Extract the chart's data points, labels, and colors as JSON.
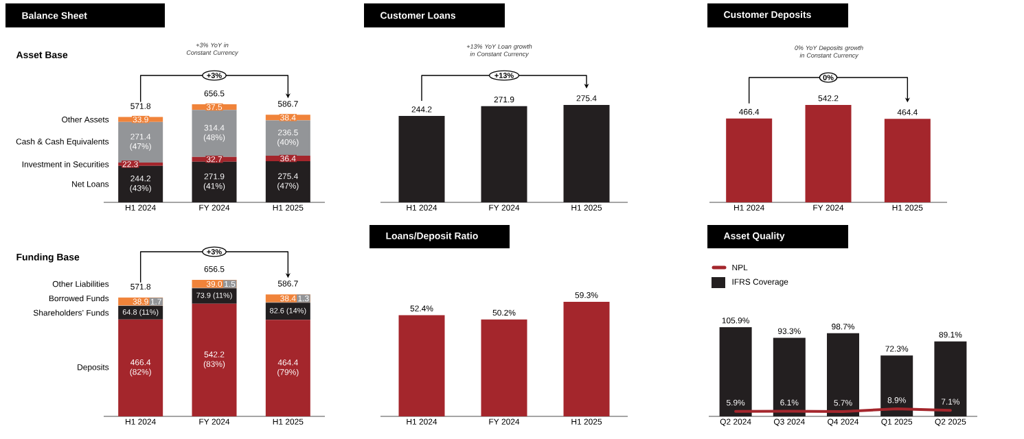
{
  "chart_data": [
    {
      "type": "bar",
      "stacked": true,
      "title": "Balance Sheet",
      "subtitle": "Asset Base",
      "categories": [
        "H1 2024",
        "FY 2024",
        "H1 2025"
      ],
      "series": [
        {
          "name": "Net Loans",
          "color": "#231f20",
          "values": [
            244.2,
            271.9,
            275.4
          ],
          "value_labels": [
            "244.2 (43%)",
            "271.9 (41%)",
            "275.4 (47%)"
          ]
        },
        {
          "name": "Investment in Securities",
          "color": "#a4262c",
          "values": [
            22.3,
            32.7,
            36.4
          ],
          "value_labels": [
            "22.3",
            "32.7",
            "36.4"
          ]
        },
        {
          "name": "Cash & Cash Equivalents",
          "color": "#939598",
          "values": [
            271.4,
            314.4,
            236.5
          ],
          "value_labels": [
            "271.4 (47%)",
            "314.4 (48%)",
            "236.5 (40%)"
          ]
        },
        {
          "name": "Other Assets",
          "color": "#f0833a",
          "values": [
            33.9,
            37.5,
            38.4
          ],
          "value_labels": [
            "33.9",
            "37.5",
            "38.4"
          ]
        }
      ],
      "totals": [
        "571.8",
        "656.5",
        "586.7"
      ],
      "annotations": [
        "+3% YoY in Constant Currency",
        "+3%"
      ]
    },
    {
      "type": "bar",
      "stacked": true,
      "subtitle": "Funding Base",
      "categories": [
        "H1 2024",
        "FY 2024",
        "H1 2025"
      ],
      "series": [
        {
          "name": "Deposits",
          "color": "#a4262c",
          "values": [
            466.4,
            542.2,
            464.4
          ],
          "value_labels": [
            "466.4 (82%)",
            "542.2 (83%)",
            "464.4 (79%)"
          ]
        },
        {
          "name": "Shareholders’ Funds",
          "color": "#231f20",
          "values": [
            64.8,
            73.9,
            82.6
          ],
          "value_labels": [
            "64.8 (11%)",
            "73.9 (11%)",
            "82.6 (14%)"
          ]
        },
        {
          "name": "Borrowed Funds",
          "color": "#939598",
          "values": [
            1.7,
            1.5,
            1.3
          ],
          "value_labels": [
            "1.7",
            "1.5",
            "1.3"
          ]
        },
        {
          "name": "Other Liabilities",
          "color": "#f0833a",
          "values": [
            38.9,
            39.0,
            38.4
          ],
          "value_labels": [
            "38.9",
            "39.0",
            "38.4"
          ]
        }
      ],
      "totals": [
        "571.8",
        "656.5",
        "586.7"
      ],
      "annotations": [
        "+3%"
      ]
    },
    {
      "type": "bar",
      "title": "Customer Loans",
      "categories": [
        "H1 2024",
        "FY 2024",
        "H1 2025"
      ],
      "values": [
        244.2,
        271.9,
        275.4
      ],
      "color": "#231f20",
      "data_labels": true,
      "annotations": [
        "+13% YoY Loan growth in Constant Currency",
        "+13%"
      ]
    },
    {
      "type": "bar",
      "title": "Customer Deposits",
      "categories": [
        "H1 2024",
        "FY 2024",
        "H1 2025"
      ],
      "values": [
        466.4,
        542.2,
        464.4
      ],
      "color": "#a4262c",
      "data_labels": true,
      "annotations": [
        "0% YoY Deposits growth in Constant Currency",
        "0%"
      ]
    },
    {
      "type": "bar",
      "title": "Loans/Deposit Ratio",
      "categories": [
        "H1 2024",
        "FY 2024",
        "H1 2025"
      ],
      "values": [
        52.4,
        50.2,
        59.3
      ],
      "value_labels": [
        "52.4%",
        "50.2%",
        "59.3%"
      ],
      "color": "#a4262c"
    },
    {
      "type": "bar",
      "title": "Asset Quality",
      "categories": [
        "Q2 2024",
        "Q3 2024",
        "Q4 2024",
        "Q1 2025",
        "Q2 2025"
      ],
      "legend": "top left",
      "series": [
        {
          "name": "NPL",
          "type": "line",
          "color": "#a4262c",
          "values": [
            5.9,
            6.1,
            5.7,
            8.9,
            7.1
          ],
          "value_labels": [
            "5.9%",
            "6.1%",
            "5.7%",
            "8.9%",
            "7.1%"
          ]
        },
        {
          "name": "IFRS Coverage",
          "type": "bar",
          "color": "#231f20",
          "values": [
            105.9,
            93.3,
            98.7,
            72.3,
            89.1
          ],
          "value_labels": [
            "105.9%",
            "93.3%",
            "98.7%",
            "72.3%",
            "89.1%"
          ]
        }
      ]
    }
  ]
}
